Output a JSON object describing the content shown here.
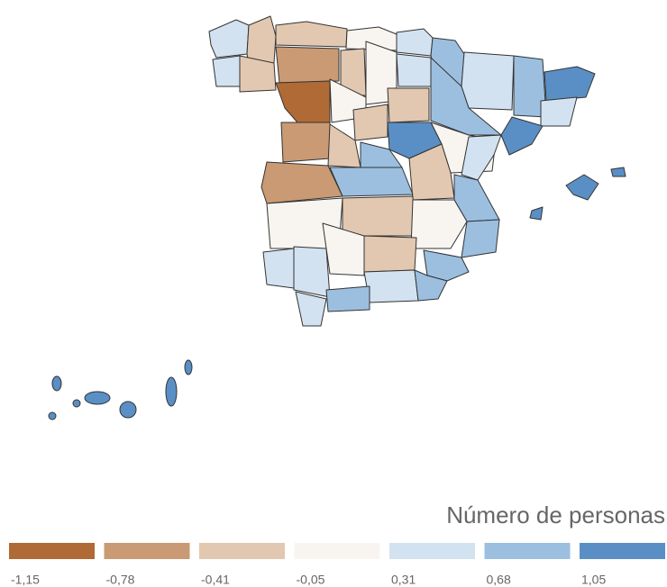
{
  "legend": {
    "title": "Número de personas",
    "items": [
      {
        "value": -1.15,
        "label": "-1,15",
        "color": "#b06a35"
      },
      {
        "value": -0.78,
        "label": "-0,78",
        "color": "#c99a73"
      },
      {
        "value": -0.41,
        "label": "-0,41",
        "color": "#e2c8b0"
      },
      {
        "value": -0.05,
        "label": "-0,05",
        "color": "#f8f4f0"
      },
      {
        "value": 0.31,
        "label": "0,31",
        "color": "#d3e2f0"
      },
      {
        "value": 0.68,
        "label": "0,68",
        "color": "#9cbfe0"
      },
      {
        "value": 1.05,
        "label": "1,05",
        "color": "#5a8fc6"
      }
    ]
  }
}
